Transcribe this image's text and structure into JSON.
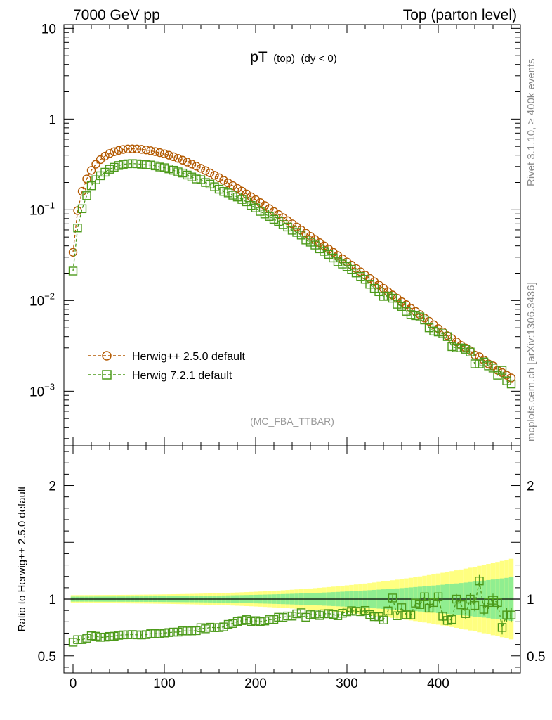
{
  "header": {
    "left": "7000 GeV pp",
    "right": "Top (parton level)"
  },
  "side": {
    "rivet": "Rivet 3.1.10, ≥ 400k events",
    "mcplots": "mcplots.cern.ch [arXiv:1306.3436]"
  },
  "chart_data": [
    {
      "type": "scatter",
      "title_main": "pT",
      "title_sub": "(top)",
      "title_tail": "(dy < 0)",
      "watermark": "(MC_FBA_TTBAR)",
      "xlabel": "",
      "ylabel": "",
      "yscale": "log",
      "xlim": [
        -10,
        490
      ],
      "ylim": [
        0.00025,
        11
      ],
      "ytick_labels": [
        {
          "value": 10,
          "base": "10",
          "exp": ""
        },
        {
          "value": 1,
          "base": "1",
          "exp": ""
        },
        {
          "value": 0.1,
          "base": "10",
          "exp": "−1"
        },
        {
          "value": 0.01,
          "base": "10",
          "exp": "−2"
        },
        {
          "value": 0.001,
          "base": "10",
          "exp": "−3"
        }
      ],
      "x": [
        0,
        5,
        10,
        15,
        20,
        25,
        30,
        35,
        40,
        45,
        50,
        55,
        60,
        65,
        70,
        75,
        80,
        85,
        90,
        95,
        100,
        105,
        110,
        115,
        120,
        125,
        130,
        135,
        140,
        145,
        150,
        155,
        160,
        165,
        170,
        175,
        180,
        185,
        190,
        195,
        200,
        205,
        210,
        215,
        220,
        225,
        230,
        235,
        240,
        245,
        250,
        255,
        260,
        265,
        270,
        275,
        280,
        285,
        290,
        295,
        300,
        305,
        310,
        315,
        320,
        325,
        330,
        335,
        340,
        345,
        350,
        355,
        360,
        365,
        370,
        375,
        380,
        385,
        390,
        395,
        400,
        405,
        410,
        415,
        420,
        425,
        430,
        435,
        440,
        445,
        450,
        455,
        460,
        465,
        470,
        475,
        480
      ],
      "series": [
        {
          "name": "Herwig++ 2.5.0 default",
          "color": "#b35900",
          "marker": "circle",
          "values": [
            0.034,
            0.098,
            0.1597,
            0.2183,
            0.2715,
            0.3179,
            0.3576,
            0.3905,
            0.4167,
            0.4369,
            0.452,
            0.4627,
            0.4682,
            0.4699,
            0.4683,
            0.4639,
            0.4568,
            0.448,
            0.4379,
            0.4268,
            0.4142,
            0.4002,
            0.3848,
            0.3689,
            0.3525,
            0.3359,
            0.3193,
            0.3028,
            0.2866,
            0.2707,
            0.255,
            0.2399,
            0.2252,
            0.211,
            0.1975,
            0.1845,
            0.1722,
            0.1605,
            0.1495,
            0.1391,
            0.1293,
            0.12,
            0.1114,
            0.1032,
            0.0957,
            0.0886,
            0.082,
            0.0758,
            0.07,
            0.0647,
            0.0598,
            0.0552,
            0.0509,
            0.047,
            0.0434,
            0.04,
            0.0369,
            0.034,
            0.0313,
            0.0288,
            0.0266,
            0.0245,
            0.0225,
            0.0207,
            0.019,
            0.0175,
            0.0161,
            0.0148,
            0.0136,
            0.0125,
            0.0115,
            0.0106,
            0.0097,
            0.009,
            0.0082,
            0.0076,
            0.007,
            0.0064,
            0.0059,
            0.0054,
            0.0049,
            0.0045,
            0.0041,
            0.0038,
            0.0035,
            0.0032,
            0.003,
            0.0028,
            0.0025,
            0.0024,
            0.0022,
            0.002,
            0.0019,
            0.0017,
            0.0016,
            0.0015,
            0.0014
          ]
        },
        {
          "name": "Herwig 7.2.1 default",
          "color": "#4c9a1a",
          "marker": "square",
          "values": [
            0.0211,
            0.063,
            0.1027,
            0.143,
            0.1839,
            0.214,
            0.2372,
            0.2595,
            0.2797,
            0.2942,
            0.3077,
            0.3168,
            0.3212,
            0.3232,
            0.321,
            0.3175,
            0.314,
            0.3115,
            0.3049,
            0.2962,
            0.2905,
            0.2823,
            0.2727,
            0.2616,
            0.254,
            0.2415,
            0.2299,
            0.2187,
            0.2144,
            0.1997,
            0.1918,
            0.1794,
            0.1687,
            0.1593,
            0.1535,
            0.1449,
            0.1383,
            0.13,
            0.1225,
            0.1117,
            0.1048,
            0.0961,
            0.0899,
            0.0845,
            0.0785,
            0.0744,
            0.0687,
            0.0645,
            0.0595,
            0.0563,
            0.0526,
            0.0464,
            0.0439,
            0.0408,
            0.0371,
            0.0348,
            0.0322,
            0.0294,
            0.0267,
            0.0252,
            0.0236,
            0.022,
            0.0201,
            0.0184,
            0.0171,
            0.0151,
            0.0136,
            0.0125,
            0.0111,
            0.0112,
            0.0106,
            0.0091,
            0.0086,
            0.0076,
            0.007,
            0.0068,
            0.0066,
            0.0061,
            0.005,
            0.0046,
            0.0045,
            0.0043,
            0.004,
            0.0031,
            0.003,
            0.003,
            0.0029,
            0.0027,
            0.002,
            0.002,
            0.0021,
            0.0019,
            0.0018,
            0.0015,
            0.0017,
            0.0013,
            0.0012
          ]
        }
      ]
    },
    {
      "type": "scatter",
      "ylabel": "Ratio to Herwig++ 2.5.0 default",
      "xlim": [
        -10,
        490
      ],
      "ylim": [
        0.35,
        2.35
      ],
      "xticks": [
        0,
        100,
        200,
        300,
        400
      ],
      "xtick_labels": [
        "0",
        "100",
        "200",
        "300",
        "400"
      ],
      "yticks": [
        0.5,
        1,
        2
      ],
      "ytick_labels": [
        "0.5",
        "1",
        "2"
      ],
      "band_colors": {
        "outer": "#ffff80",
        "inner": "#90ee90"
      },
      "reference_line": 1,
      "series": [
        {
          "name": "Herwig 7.2.1 default",
          "values": [
            0.62,
            0.643,
            0.643,
            0.655,
            0.677,
            0.673,
            0.663,
            0.665,
            0.671,
            0.673,
            0.681,
            0.685,
            0.686,
            0.688,
            0.685,
            0.684,
            0.687,
            0.695,
            0.696,
            0.694,
            0.701,
            0.705,
            0.709,
            0.709,
            0.72,
            0.719,
            0.72,
            0.722,
            0.748,
            0.738,
            0.752,
            0.748,
            0.749,
            0.755,
            0.777,
            0.785,
            0.803,
            0.81,
            0.819,
            0.803,
            0.81,
            0.801,
            0.807,
            0.819,
            0.82,
            0.84,
            0.838,
            0.851,
            0.85,
            0.87,
            0.88,
            0.84,
            0.862,
            0.868,
            0.855,
            0.87,
            0.873,
            0.865,
            0.853,
            0.875,
            0.888,
            0.898,
            0.893,
            0.889,
            0.9,
            0.863,
            0.845,
            0.845,
            0.816,
            0.896,
            1.01,
            0.853,
            0.924,
            0.862,
            0.86,
            0.965,
            0.952,
            1.02,
            0.92,
            0.97,
            1.02,
            0.849,
            0.812,
            0.82,
            1.0,
            0.95,
            0.872,
            1.0,
            0.944,
            1.16,
            0.91,
            0.97,
            0.99,
            0.97,
            0.75,
            0.86,
            0.86
          ]
        }
      ]
    }
  ]
}
